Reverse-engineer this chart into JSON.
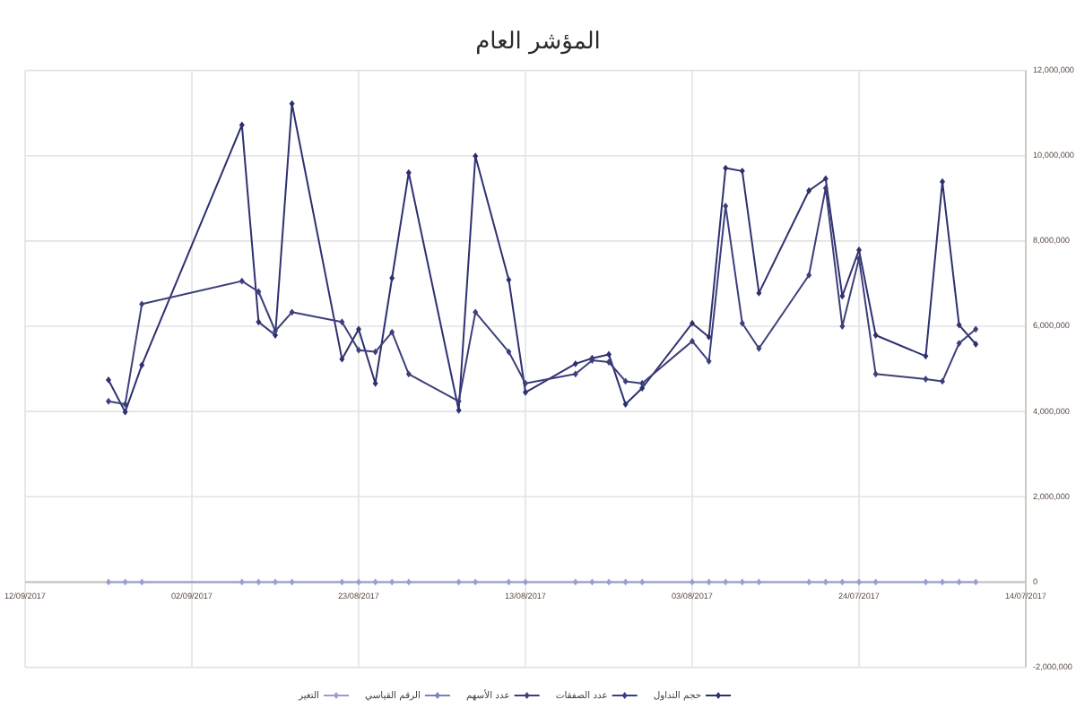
{
  "chart_data": {
    "type": "line",
    "title": "المؤشر العام",
    "x": [
      "2017-07-17",
      "2017-07-18",
      "2017-07-19",
      "2017-07-20",
      "2017-07-23",
      "2017-07-24",
      "2017-07-25",
      "2017-07-26",
      "2017-07-27",
      "2017-07-30",
      "2017-07-31",
      "2017-08-01",
      "2017-08-02",
      "2017-08-03",
      "2017-08-06",
      "2017-08-07",
      "2017-08-08",
      "2017-08-09",
      "2017-08-10",
      "2017-08-13",
      "2017-08-14",
      "2017-08-16",
      "2017-08-17",
      "2017-08-20",
      "2017-08-21",
      "2017-08-22",
      "2017-08-23",
      "2017-08-24",
      "2017-08-27",
      "2017-08-28",
      "2017-08-29",
      "2017-08-30",
      "2017-09-05",
      "2017-09-06",
      "2017-09-07"
    ],
    "series": [
      {
        "name": "حجم التداول",
        "color": "#2e3170",
        "values": [
          5580000,
          6030000,
          9390000,
          5300000,
          5790000,
          7790000,
          6710000,
          9460000,
          9180000,
          6780000,
          9640000,
          9710000,
          5750000,
          6070000,
          4550000,
          4170000,
          5340000,
          5250000,
          5120000,
          4450000,
          7090000,
          9990000,
          4030000,
          9600000,
          7130000,
          4660000,
          5930000,
          5230000,
          11220000,
          5790000,
          6100000,
          10720000,
          5090000,
          3990000,
          4740000
        ]
      },
      {
        "name": "عدد الصفقات",
        "color": "#3a3d85",
        "values": [
          null,
          null,
          null,
          null,
          null,
          null,
          null,
          null,
          null,
          null,
          null,
          null,
          null,
          null,
          null,
          null,
          null,
          null,
          null,
          null,
          null,
          null,
          null,
          null,
          null,
          null,
          null,
          null,
          null,
          null,
          null,
          null,
          null,
          null,
          null
        ]
      },
      {
        "name": "عدد الأسهم",
        "color": "#3c3f7a",
        "values": [
          5930000,
          5600000,
          4710000,
          4760000,
          4880000,
          7590000,
          6000000,
          9240000,
          7200000,
          5480000,
          6070000,
          8820000,
          5180000,
          5650000,
          4660000,
          4710000,
          5160000,
          5200000,
          4880000,
          4660000,
          5400000,
          6330000,
          4240000,
          4880000,
          5860000,
          5400000,
          5440000,
          6100000,
          6330000,
          5890000,
          6810000,
          7060000,
          6520000,
          4170000,
          4240000
        ]
      },
      {
        "name": "الرقم القياسي",
        "color": "#7b7fc0",
        "values": [
          null,
          null,
          null,
          null,
          null,
          null,
          null,
          null,
          null,
          null,
          null,
          null,
          null,
          null,
          null,
          null,
          null,
          null,
          null,
          null,
          null,
          null,
          null,
          null,
          null,
          null,
          null,
          null,
          null,
          null,
          null,
          null,
          null,
          null,
          null
        ]
      },
      {
        "name": "التغير",
        "color": "#9a9dd0",
        "values": [
          0,
          0,
          0,
          0,
          0,
          0,
          0,
          0,
          0,
          0,
          0,
          0,
          0,
          0,
          0,
          0,
          0,
          0,
          0,
          0,
          0,
          0,
          0,
          0,
          0,
          0,
          0,
          0,
          0,
          0,
          0,
          0,
          0,
          0,
          0
        ]
      }
    ],
    "xlim": [
      "2017-09-12",
      "2017-07-14"
    ],
    "xticks": [
      {
        "value": "2017-09-12",
        "label": "12/09/2017"
      },
      {
        "value": "2017-09-02",
        "label": "02/09/2017"
      },
      {
        "value": "2017-08-23",
        "label": "23/08/2017"
      },
      {
        "value": "2017-08-13",
        "label": "13/08/2017"
      },
      {
        "value": "2017-08-03",
        "label": "03/08/2017"
      },
      {
        "value": "2017-07-24",
        "label": "24/07/2017"
      },
      {
        "value": "2017-07-14",
        "label": "14/07/2017"
      }
    ],
    "ylim": [
      -2000000,
      12000000
    ],
    "yticks": [
      {
        "value": -2000000,
        "label": "-2,000,000"
      },
      0,
      {
        "value": 2000000,
        "label": "2,000,000"
      },
      {
        "value": 4000000,
        "label": "4,000,000"
      },
      {
        "value": 6000000,
        "label": "6,000,000"
      },
      {
        "value": 8000000,
        "label": "8,000,000"
      },
      {
        "value": 10000000,
        "label": "10,000,000"
      },
      {
        "value": 12000000,
        "label": "12,000,000"
      }
    ],
    "grid": true,
    "legend": "bottom",
    "marker": "diamond",
    "line_style": "solid"
  }
}
